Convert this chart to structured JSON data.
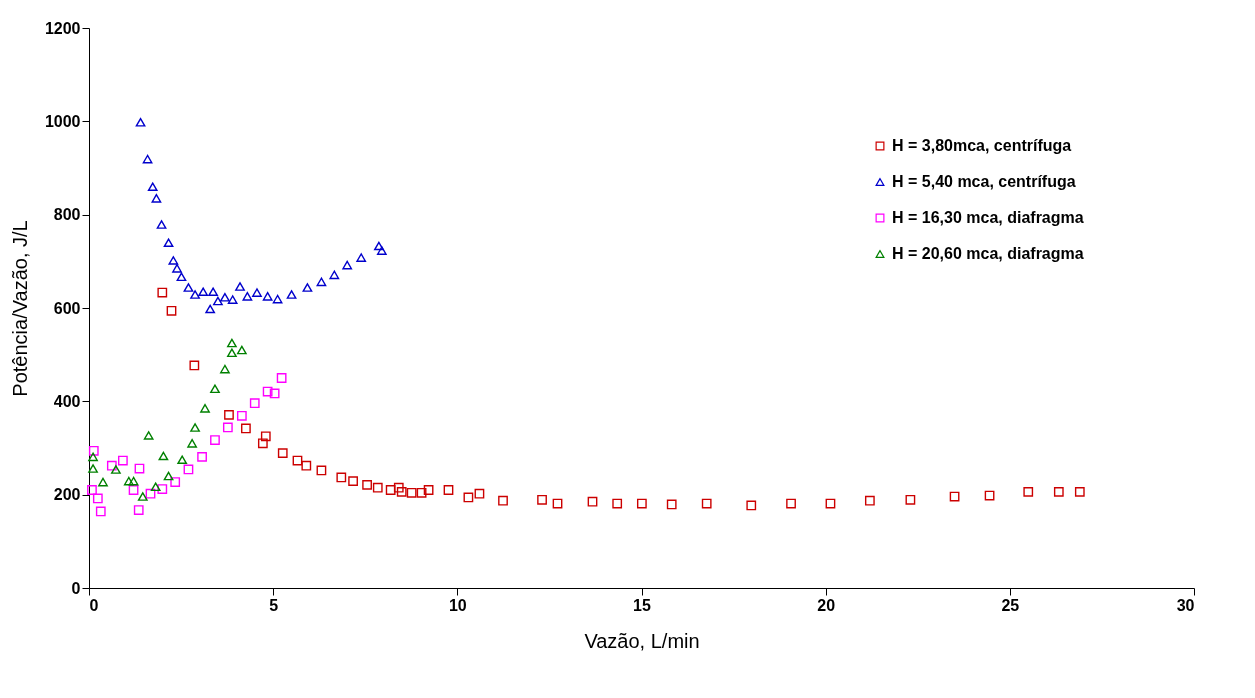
{
  "chart_data": {
    "type": "scatter",
    "xlabel": "Vazão, L/min",
    "ylabel": "Potência/Vazão, J/L",
    "xlim": [
      0,
      30
    ],
    "xticks": [
      0,
      5,
      10,
      15,
      20,
      25,
      30
    ],
    "ylim": [
      0,
      1200
    ],
    "yticks": [
      0,
      200,
      400,
      600,
      800,
      1000,
      1200
    ],
    "grid": false,
    "legend": "top right",
    "series": [
      {
        "name": "H = 3,80mca, centrífuga",
        "color": "#cc0000",
        "marker": "square",
        "x": [
          1.99,
          2.24,
          2.86,
          3.8,
          4.26,
          4.72,
          4.8,
          5.26,
          5.66,
          5.9,
          6.31,
          6.85,
          7.17,
          7.55,
          7.84,
          8.19,
          8.41,
          8.49,
          8.76,
          9.03,
          9.22,
          9.76,
          10.3,
          10.6,
          11.24,
          12.3,
          12.72,
          13.67,
          14.34,
          15.01,
          15.82,
          16.77,
          17.98,
          19.06,
          20.13,
          21.2,
          22.3,
          23.5,
          24.45,
          25.5,
          26.33,
          26.9
        ],
        "values": [
          633,
          594,
          477,
          371,
          342,
          310,
          325,
          289,
          273,
          262,
          252,
          237,
          229,
          221,
          215,
          210,
          215,
          206,
          204,
          204,
          210,
          210,
          194,
          202,
          187,
          189,
          181,
          185,
          181,
          181,
          179,
          181,
          177,
          181,
          181,
          187,
          189,
          196,
          198,
          206,
          206,
          206
        ]
      },
      {
        "name": "H = 5,40 mca, centrífuga",
        "color": "#0000cc",
        "marker": "triangle",
        "x": [
          1.4,
          1.59,
          1.73,
          1.83,
          1.97,
          2.16,
          2.29,
          2.39,
          2.51,
          2.7,
          2.88,
          3.1,
          3.29,
          3.37,
          3.5,
          3.69,
          3.9,
          4.1,
          4.3,
          4.56,
          4.85,
          5.12,
          5.5,
          5.93,
          6.31,
          6.66,
          7.01,
          7.39,
          7.87,
          7.95
        ],
        "values": [
          998,
          919,
          860,
          835,
          779,
          740,
          702,
          685,
          667,
          644,
          629,
          635,
          598,
          635,
          615,
          623,
          618,
          646,
          625,
          633,
          625,
          619,
          629,
          644,
          656,
          671,
          692,
          708,
          733,
          723
        ]
      },
      {
        "name": "H = 16,30 mca, diafragma",
        "color": "#ff00ff",
        "marker": "square",
        "x": [
          0.08,
          0.13,
          0.24,
          0.32,
          0.62,
          0.92,
          1.21,
          1.35,
          1.37,
          1.67,
          1.99,
          2.34,
          2.7,
          3.07,
          3.42,
          3.77,
          4.15,
          4.5,
          4.85,
          5.04,
          5.23
        ],
        "values": [
          210,
          294,
          192,
          164,
          262,
          273,
          210,
          167,
          256,
          202,
          212,
          227,
          254,
          281,
          317,
          344,
          369,
          396,
          421,
          417,
          450
        ]
      },
      {
        "name": "H = 20,60 mca, diafragma",
        "color": "#008000",
        "marker": "triangle",
        "x": [
          0.11,
          0.11,
          0.38,
          0.73,
          1.08,
          1.21,
          1.46,
          1.62,
          1.81,
          2.02,
          2.16,
          2.53,
          2.8,
          2.88,
          3.15,
          3.42,
          3.69,
          3.88,
          3.88,
          4.15
        ],
        "values": [
          281,
          256,
          227,
          254,
          229,
          229,
          196,
          327,
          217,
          283,
          240,
          275,
          310,
          344,
          385,
          427,
          469,
          504,
          525,
          510
        ]
      }
    ]
  }
}
